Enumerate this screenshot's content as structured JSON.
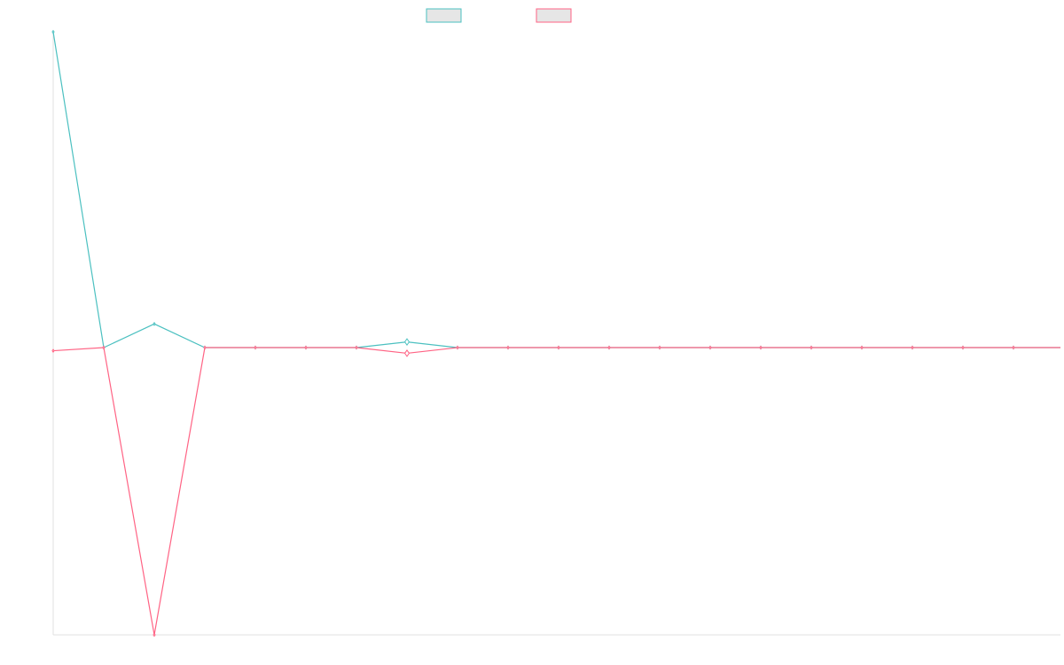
{
  "chart_data": {
    "type": "line",
    "x": [
      0,
      1,
      2,
      3,
      4,
      5,
      6,
      7,
      8,
      9,
      10,
      11,
      12,
      13,
      14,
      15,
      16,
      17,
      18,
      19,
      20
    ],
    "series": [
      {
        "values": [
          1.0,
          0.0,
          0.075,
          0.0,
          0.0,
          0.0,
          0.0,
          0.018,
          0.0,
          0.0,
          0.0,
          0.0,
          0.0,
          0.0,
          0.0,
          0.0,
          0.0,
          0.0,
          0.0,
          0.0,
          0.0
        ],
        "color": "#4bc0c0"
      },
      {
        "values": [
          -0.01,
          0.0,
          -0.91,
          0.0,
          0.0,
          0.0,
          0.0,
          -0.018,
          0.0,
          0.0,
          0.0,
          0.0,
          0.0,
          0.0,
          0.0,
          0.0,
          0.0,
          0.0,
          0.0,
          0.0,
          0.0
        ],
        "color": "#ff6384"
      }
    ],
    "ylim": [
      -0.91,
      1.0
    ],
    "grid": false,
    "legend_position": "top"
  }
}
